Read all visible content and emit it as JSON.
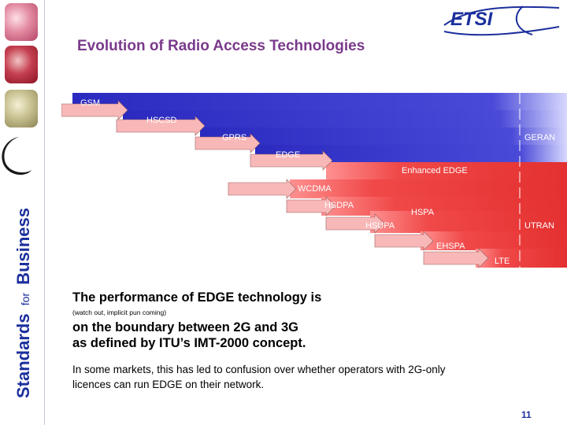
{
  "slide": {
    "title": "Evolution of Radio Access Technologies",
    "sidebar_text_1": "Standards",
    "sidebar_text_2": "for",
    "sidebar_text_3": "Business",
    "logo_text": "ETSI",
    "text_line_1": "The performance of EDGE technology is",
    "text_tiny": "(watch out, implicit pun coming)",
    "text_line_2": "on the boundary between 2G and 3G",
    "text_line_3": "as defined by ITU’s IMT-2000 concept.",
    "paragraph_line_1": "In some markets, this has led to confusion over whether operators with 2G-only",
    "paragraph_line_2": "licences can run EDGE on their network.",
    "page_number": "11"
  },
  "diagram": {
    "group_labels": [
      "GERAN",
      "UTRAN"
    ],
    "technologies": [
      "GSM",
      "HSCSD",
      "GPRS",
      "EDGE",
      "Enhanced EDGE",
      "WCDMA",
      "HSDPA",
      "HSPA",
      "HSUPA",
      "EHSPA",
      "LTE"
    ],
    "colors": {
      "geran_band": "#2f2fc8",
      "utran_band": "#f04040",
      "arrow": "#f9b8b8",
      "arrow_edge": "#9a6060",
      "label_white": "#ffffff",
      "title": "#7a3a8c",
      "logo": "#1b2f9c",
      "page_number": "#1b2f9c"
    }
  }
}
